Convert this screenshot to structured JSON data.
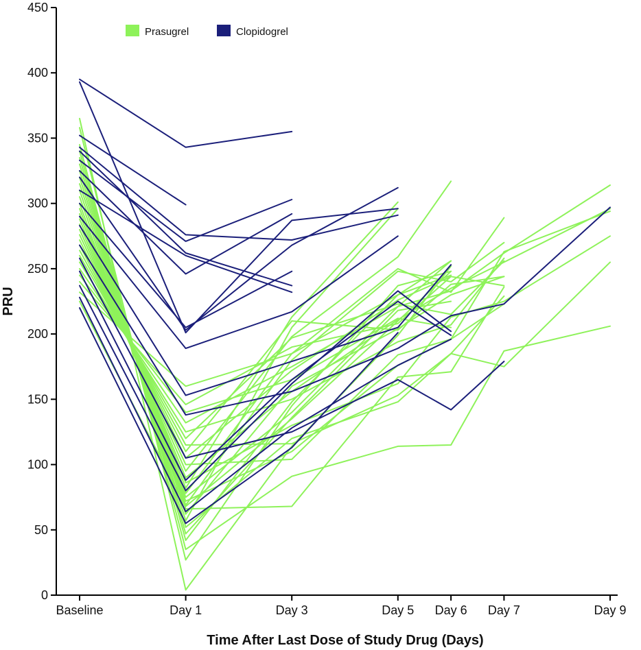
{
  "chart_data": {
    "type": "line",
    "title": "",
    "xlabel": "Time After Last Dose of Study Drug (Days)",
    "ylabel": "PRU",
    "ylim": [
      0,
      450
    ],
    "yticks": [
      0,
      50,
      100,
      150,
      200,
      250,
      300,
      350,
      400,
      450
    ],
    "x_categories": [
      {
        "label": "Baseline",
        "value": -1
      },
      {
        "label": "Day 1",
        "value": 1
      },
      {
        "label": "Day 3",
        "value": 3
      },
      {
        "label": "Day 5",
        "value": 5
      },
      {
        "label": "Day 6",
        "value": 6
      },
      {
        "label": "Day 7",
        "value": 7
      },
      {
        "label": "Day 9",
        "value": 9
      }
    ],
    "legend": {
      "placement": "top-left",
      "entries": [
        {
          "name": "Prasugrel",
          "color": "#8ef25a"
        },
        {
          "name": "Clopidogrel",
          "color": "#1b1f7a"
        }
      ]
    },
    "groups": [
      {
        "name": "Prasugrel",
        "color": "#8ef25a",
        "subjects": [
          [
            [
              -1,
              365
            ],
            [
              1,
              4
            ],
            [
              3,
              114
            ],
            [
              5,
              199
            ],
            [
              6,
              252
            ]
          ],
          [
            [
              -1,
              358
            ],
            [
              1,
              27
            ],
            [
              3,
              145
            ],
            [
              5,
              237
            ],
            [
              6,
              248
            ]
          ],
          [
            [
              -1,
              345
            ],
            [
              1,
              35
            ],
            [
              3,
              91
            ],
            [
              5,
              114
            ],
            [
              6,
              115
            ],
            [
              7,
              187
            ],
            [
              9,
              206
            ]
          ],
          [
            [
              -1,
              340
            ],
            [
              1,
              42
            ],
            [
              3,
              148
            ],
            [
              5,
              230
            ],
            [
              6,
              256
            ]
          ],
          [
            [
              -1,
              335
            ],
            [
              1,
              47
            ],
            [
              3,
              136
            ],
            [
              5,
              218
            ],
            [
              6,
              225
            ]
          ],
          [
            [
              -1,
              330
            ],
            [
              1,
              52
            ],
            [
              3,
              120
            ],
            [
              5,
              148
            ],
            [
              6,
              185
            ],
            [
              7,
              175
            ],
            [
              9,
              255
            ]
          ],
          [
            [
              -1,
              325
            ],
            [
              1,
              57
            ],
            [
              3,
              205
            ],
            [
              5,
              296
            ]
          ],
          [
            [
              -1,
              320
            ],
            [
              1,
              62
            ],
            [
              3,
              160
            ],
            [
              5,
              204
            ],
            [
              6,
              230
            ],
            [
              7,
              244
            ]
          ],
          [
            [
              -1,
              315
            ],
            [
              1,
              66
            ],
            [
              3,
              68
            ],
            [
              5,
              167
            ],
            [
              6,
              171
            ],
            [
              7,
              236
            ]
          ],
          [
            [
              -1,
              310
            ],
            [
              1,
              69
            ],
            [
              3,
              180
            ],
            [
              5,
              248
            ],
            [
              6,
              240
            ],
            [
              7,
              270
            ]
          ],
          [
            [
              -1,
              305
            ],
            [
              1,
              72
            ],
            [
              3,
              110
            ],
            [
              5,
              176
            ],
            [
              6,
              196
            ],
            [
              7,
              263
            ],
            [
              9,
              294
            ]
          ],
          [
            [
              -1,
              300
            ],
            [
              1,
              75
            ],
            [
              3,
              140
            ],
            [
              5,
              221
            ],
            [
              6,
              233
            ],
            [
              7,
              262
            ],
            [
              9,
              314
            ]
          ],
          [
            [
              -1,
              296
            ],
            [
              1,
              78
            ],
            [
              3,
              185
            ],
            [
              5,
              250
            ],
            [
              6,
              232
            ],
            [
              7,
              289
            ]
          ],
          [
            [
              -1,
              292
            ],
            [
              1,
              82
            ],
            [
              3,
              213
            ],
            [
              5,
              301
            ]
          ],
          [
            [
              -1,
              288
            ],
            [
              1,
              86
            ],
            [
              3,
              130
            ],
            [
              5,
              162
            ],
            [
              6,
              213
            ],
            [
              7,
              225
            ],
            [
              9,
              275
            ]
          ],
          [
            [
              -1,
              284
            ],
            [
              1,
              90
            ],
            [
              3,
              156
            ],
            [
              5,
              211
            ],
            [
              6,
              235
            ],
            [
              7,
              255
            ],
            [
              9,
              296
            ]
          ],
          [
            [
              -1,
              280
            ],
            [
              1,
              95
            ],
            [
              3,
              198
            ],
            [
              5,
              259
            ],
            [
              6,
              317
            ]
          ],
          [
            [
              -1,
              276
            ],
            [
              1,
              100
            ],
            [
              3,
              104
            ],
            [
              5,
              184
            ],
            [
              6,
              196
            ],
            [
              7,
              223
            ]
          ],
          [
            [
              -1,
              272
            ],
            [
              1,
              105
            ],
            [
              3,
              172
            ],
            [
              5,
              226
            ],
            [
              6,
              244
            ],
            [
              7,
              237
            ]
          ],
          [
            [
              -1,
              268
            ],
            [
              1,
              110
            ],
            [
              3,
              210
            ],
            [
              5,
              203
            ],
            [
              6,
              238
            ],
            [
              7,
              244
            ]
          ],
          [
            [
              -1,
              264
            ],
            [
              1,
              115
            ],
            [
              3,
              116
            ],
            [
              5,
              153
            ],
            [
              6,
              185
            ],
            [
              7,
              229
            ]
          ],
          [
            [
              -1,
              260
            ],
            [
              1,
              120
            ],
            [
              3,
              197
            ],
            [
              5,
              223
            ],
            [
              6,
              215
            ],
            [
              7,
              256
            ]
          ],
          [
            [
              -1,
              255
            ],
            [
              1,
              125
            ],
            [
              3,
              150
            ],
            [
              5,
              194
            ],
            [
              6,
              207
            ],
            [
              7,
              258
            ]
          ],
          [
            [
              -1,
              250
            ],
            [
              1,
              132
            ],
            [
              3,
              175
            ],
            [
              5,
              221
            ],
            [
              6,
              256
            ]
          ],
          [
            [
              -1,
              245
            ],
            [
              1,
              140
            ],
            [
              3,
              165
            ],
            [
              5,
              212
            ],
            [
              6,
              205
            ]
          ],
          [
            [
              -1,
              240
            ],
            [
              1,
              146
            ],
            [
              3,
              190
            ],
            [
              5,
              208
            ],
            [
              6,
              244
            ]
          ],
          [
            [
              -1,
              232
            ],
            [
              1,
              160
            ],
            [
              3,
              185
            ],
            [
              5,
              230
            ],
            [
              6,
              245
            ]
          ],
          [
            [
              -1,
              225
            ],
            [
              1,
              68
            ],
            [
              3,
              135
            ],
            [
              5,
              210
            ],
            [
              6,
              248
            ]
          ]
        ]
      },
      {
        "name": "Clopidogrel",
        "color": "#1b1f7a",
        "subjects": [
          [
            [
              -1,
              395
            ],
            [
              1,
              343
            ],
            [
              3,
              355
            ]
          ],
          [
            [
              -1,
              393
            ],
            [
              1,
              201
            ],
            [
              3,
              287
            ],
            [
              5,
              296
            ]
          ],
          [
            [
              -1,
              352
            ],
            [
              1,
              299
            ]
          ],
          [
            [
              -1,
              343
            ],
            [
              1,
              276
            ],
            [
              3,
              272
            ],
            [
              5,
              291
            ]
          ],
          [
            [
              -1,
              340
            ],
            [
              1,
              262
            ],
            [
              3,
              237
            ]
          ],
          [
            [
              -1,
              333
            ],
            [
              1,
              271
            ],
            [
              3,
              303
            ]
          ],
          [
            [
              -1,
              325
            ],
            [
              1,
              246
            ],
            [
              3,
              292
            ]
          ],
          [
            [
              -1,
              320
            ],
            [
              1,
              203
            ],
            [
              3,
              268
            ],
            [
              5,
              312
            ]
          ],
          [
            [
              -1,
              310
            ],
            [
              1,
              260
            ],
            [
              3,
              232
            ]
          ],
          [
            [
              -1,
              300
            ],
            [
              1,
              205
            ],
            [
              3,
              248
            ]
          ],
          [
            [
              -1,
              290
            ],
            [
              1,
              189
            ],
            [
              3,
              217
            ],
            [
              5,
              275
            ]
          ],
          [
            [
              -1,
              283
            ],
            [
              1,
              153
            ],
            [
              3,
              179
            ],
            [
              5,
              205
            ],
            [
              6,
              253
            ]
          ],
          [
            [
              -1,
              268
            ],
            [
              1,
              138
            ],
            [
              3,
              156
            ],
            [
              5,
              189
            ],
            [
              6,
              214
            ],
            [
              7,
              223
            ],
            [
              9,
              297
            ]
          ],
          [
            [
              -1,
              258
            ],
            [
              1,
              105
            ],
            [
              3,
              125
            ],
            [
              5,
              165
            ],
            [
              6,
              142
            ],
            [
              7,
              179
            ]
          ],
          [
            [
              -1,
              248
            ],
            [
              1,
              88
            ],
            [
              3,
              165
            ],
            [
              5,
              225
            ],
            [
              6,
              199
            ]
          ],
          [
            [
              -1,
              237
            ],
            [
              1,
              80
            ],
            [
              3,
              162
            ],
            [
              5,
              233
            ],
            [
              6,
              202
            ]
          ],
          [
            [
              -1,
              228
            ],
            [
              1,
              64
            ],
            [
              3,
              128
            ],
            [
              5,
              176
            ],
            [
              6,
              196
            ]
          ],
          [
            [
              -1,
              220
            ],
            [
              1,
              55
            ],
            [
              3,
              113
            ],
            [
              5,
              201
            ]
          ]
        ]
      }
    ]
  }
}
